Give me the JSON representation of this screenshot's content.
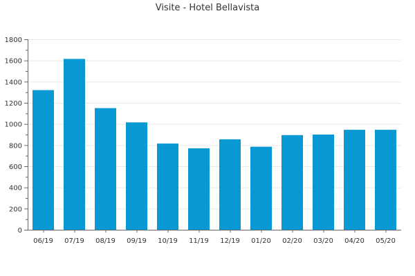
{
  "colors": {
    "bar": "#0899d4",
    "axis": "#666666",
    "grid": "#e6e6e6",
    "text": "#333333",
    "background": "#ffffff"
  },
  "chart_data": {
    "type": "bar",
    "title": "Visite - Hotel Bellavista",
    "xlabel": "",
    "ylabel": "",
    "categories": [
      "06/19",
      "07/19",
      "08/19",
      "09/19",
      "10/19",
      "11/19",
      "12/19",
      "01/20",
      "02/20",
      "03/20",
      "04/20",
      "05/20"
    ],
    "values": [
      1320,
      1615,
      1150,
      1015,
      815,
      770,
      855,
      785,
      895,
      900,
      945,
      945
    ],
    "ylim": [
      0,
      1800
    ],
    "yticks": [
      0,
      200,
      400,
      600,
      800,
      1000,
      1200,
      1400,
      1600,
      1800
    ],
    "grid": true,
    "legend": "none"
  }
}
